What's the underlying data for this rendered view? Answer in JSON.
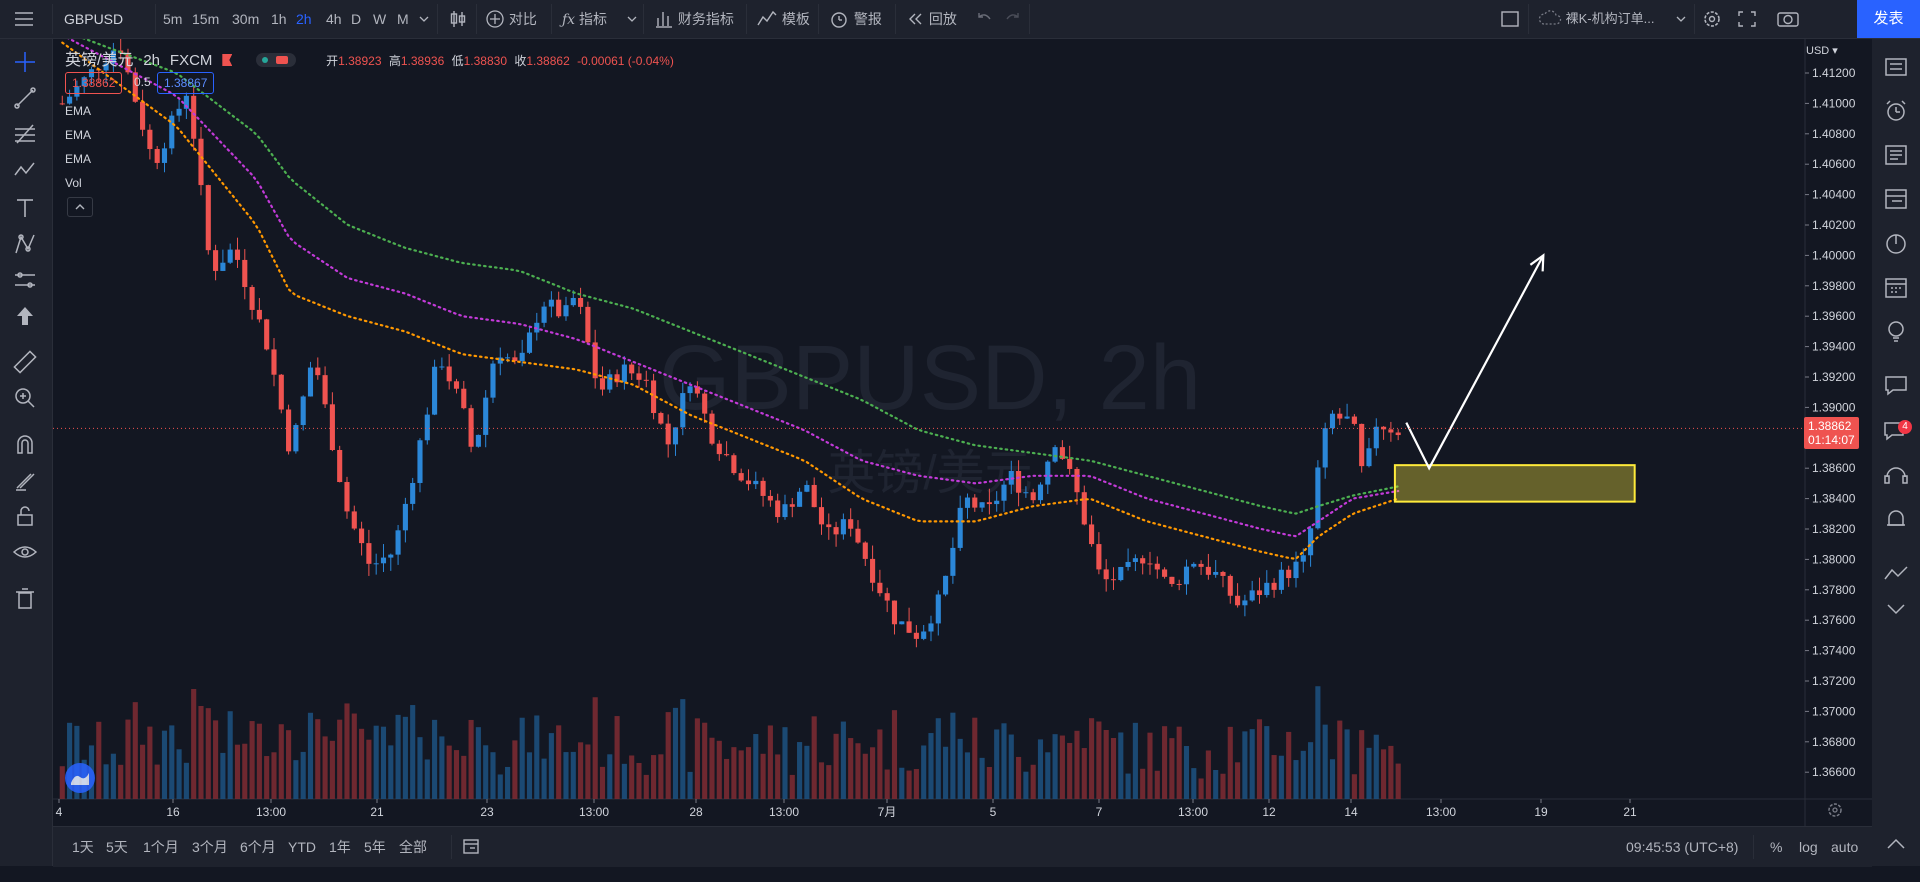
{
  "toolbar": {
    "symbol": "GBPUSD",
    "intervals": [
      "5m",
      "15m",
      "30m",
      "1h",
      "2h",
      "4h",
      "D",
      "W",
      "M"
    ],
    "active_interval": "2h",
    "compare": "对比",
    "indicators": "指标",
    "financials": "财务指标",
    "templates": "模板",
    "alert": "警报",
    "replay": "回放",
    "layout_name": "裸K-机构订单...",
    "publish": "发表"
  },
  "legend": {
    "title": "英镑/美元",
    "interval": "2h",
    "source": "FXCM",
    "open_label": "开",
    "open": "1.38923",
    "high_label": "高",
    "high": "1.38936",
    "low_label": "低",
    "low": "1.38830",
    "close_label": "收",
    "close": "1.38862",
    "change": "-0.00061 (-0.04%)",
    "bid": "1.38862",
    "spread": "0.5",
    "ask": "1.38867",
    "indicators": [
      "EMA",
      "EMA",
      "EMA",
      "Vol"
    ]
  },
  "price_axis": {
    "currency": "USD",
    "last_price": "1.38862",
    "countdown": "01:14:07"
  },
  "bottom": {
    "ranges": [
      "1天",
      "5天",
      "1个月",
      "3个月",
      "6个月",
      "YTD",
      "1年",
      "5年",
      "全部"
    ],
    "clock": "09:45:53 (UTC+8)",
    "percent": "%",
    "log": "log",
    "auto": "auto"
  },
  "watermark": {
    "line1": "GBPUSD, 2h",
    "line2": "英镑/美元"
  },
  "notification_count": "4",
  "colors": {
    "up": "#2b87d8",
    "down": "#ef5350",
    "ema_fast": "#ff9800",
    "ema_mid": "#c23ad8",
    "ema_slow": "#4caf50",
    "zone": "#ffeb3b",
    "arrow": "#ffffff"
  },
  "chart_data": {
    "type": "candlestick",
    "title": "",
    "ylim": [
      1.3645,
      1.4145
    ],
    "y_ticks": [
      "1.41200",
      "1.41000",
      "1.40800",
      "1.40600",
      "1.40400",
      "1.40200",
      "1.40000",
      "1.39800",
      "1.39600",
      "1.39400",
      "1.39200",
      "1.39000",
      "1.38800",
      "1.38600",
      "1.38400",
      "1.38200",
      "1.38000",
      "1.37800",
      "1.37600",
      "1.37400",
      "1.37200",
      "1.37000",
      "1.36800",
      "1.36600"
    ],
    "x_ticks": [
      "4",
      "16",
      "13:00",
      "21",
      "23",
      "13:00",
      "28",
      "13:00",
      "7月",
      "5",
      "7",
      "13:00",
      "12",
      "14",
      "13:00",
      "19",
      "21"
    ],
    "price_path": [
      [
        0,
        1.41
      ],
      [
        5,
        1.414
      ],
      [
        8,
        1.406
      ],
      [
        11,
        1.411
      ],
      [
        13,
        1.399
      ],
      [
        15,
        1.4005
      ],
      [
        18,
        1.394
      ],
      [
        20,
        1.387
      ],
      [
        22,
        1.3935
      ],
      [
        25,
        1.383
      ],
      [
        27,
        1.3795
      ],
      [
        29,
        1.3805
      ],
      [
        31,
        1.3865
      ],
      [
        33,
        1.3935
      ],
      [
        35,
        1.39
      ],
      [
        36,
        1.3868
      ],
      [
        38,
        1.394
      ],
      [
        40,
        1.3925
      ],
      [
        42,
        1.397
      ],
      [
        44,
        1.396
      ],
      [
        45,
        1.3975
      ],
      [
        47,
        1.391
      ],
      [
        49,
        1.3925
      ],
      [
        51,
        1.392
      ],
      [
        53,
        1.3875
      ],
      [
        55,
        1.392
      ],
      [
        57,
        1.388
      ],
      [
        59,
        1.386
      ],
      [
        61,
        1.3845
      ],
      [
        63,
        1.383
      ],
      [
        65,
        1.385
      ],
      [
        67,
        1.3815
      ],
      [
        69,
        1.3825
      ],
      [
        71,
        1.379
      ],
      [
        73,
        1.376
      ],
      [
        75,
        1.375
      ],
      [
        77,
        1.3775
      ],
      [
        79,
        1.384
      ],
      [
        81,
        1.383
      ],
      [
        83,
        1.3855
      ],
      [
        85,
        1.384
      ],
      [
        87,
        1.388
      ],
      [
        89,
        1.384
      ],
      [
        91,
        1.3785
      ],
      [
        93,
        1.379
      ],
      [
        95,
        1.3805
      ],
      [
        97,
        1.378
      ],
      [
        99,
        1.38
      ],
      [
        101,
        1.379
      ],
      [
        103,
        1.377
      ],
      [
        105,
        1.378
      ],
      [
        107,
        1.379
      ],
      [
        109,
        1.38
      ],
      [
        110,
        1.386
      ],
      [
        111,
        1.3895
      ],
      [
        113,
        1.389
      ],
      [
        114,
        1.385
      ],
      [
        115,
        1.389
      ],
      [
        117,
        1.3885
      ]
    ],
    "ema_fast_path": [
      [
        0,
        1.414
      ],
      [
        10,
        1.4085
      ],
      [
        17,
        1.402
      ],
      [
        20,
        1.3975
      ],
      [
        25,
        1.396
      ],
      [
        30,
        1.395
      ],
      [
        35,
        1.3935
      ],
      [
        40,
        1.393
      ],
      [
        45,
        1.3925
      ],
      [
        50,
        1.3915
      ],
      [
        55,
        1.3895
      ],
      [
        60,
        1.388
      ],
      [
        65,
        1.3865
      ],
      [
        70,
        1.384
      ],
      [
        75,
        1.3825
      ],
      [
        80,
        1.3825
      ],
      [
        85,
        1.3835
      ],
      [
        90,
        1.384
      ],
      [
        95,
        1.3825
      ],
      [
        100,
        1.3815
      ],
      [
        105,
        1.3805
      ],
      [
        108,
        1.38
      ],
      [
        110,
        1.3815
      ],
      [
        113,
        1.383
      ],
      [
        117,
        1.384
      ]
    ],
    "ema_mid_path": [
      [
        0,
        1.4145
      ],
      [
        10,
        1.4105
      ],
      [
        17,
        1.405
      ],
      [
        20,
        1.401
      ],
      [
        25,
        1.3985
      ],
      [
        30,
        1.3975
      ],
      [
        35,
        1.396
      ],
      [
        40,
        1.3955
      ],
      [
        45,
        1.3945
      ],
      [
        50,
        1.393
      ],
      [
        55,
        1.3915
      ],
      [
        60,
        1.39
      ],
      [
        65,
        1.3885
      ],
      [
        70,
        1.3865
      ],
      [
        75,
        1.3855
      ],
      [
        80,
        1.385
      ],
      [
        85,
        1.3855
      ],
      [
        90,
        1.3855
      ],
      [
        95,
        1.384
      ],
      [
        100,
        1.383
      ],
      [
        105,
        1.382
      ],
      [
        108,
        1.3815
      ],
      [
        110,
        1.3825
      ],
      [
        113,
        1.384
      ],
      [
        117,
        1.3845
      ]
    ],
    "ema_slow_path": [
      [
        0,
        1.4148
      ],
      [
        10,
        1.412
      ],
      [
        17,
        1.408
      ],
      [
        20,
        1.405
      ],
      [
        25,
        1.402
      ],
      [
        30,
        1.4005
      ],
      [
        35,
        1.3995
      ],
      [
        40,
        1.399
      ],
      [
        45,
        1.3975
      ],
      [
        50,
        1.3965
      ],
      [
        55,
        1.395
      ],
      [
        60,
        1.3935
      ],
      [
        65,
        1.392
      ],
      [
        70,
        1.3905
      ],
      [
        75,
        1.3885
      ],
      [
        80,
        1.3875
      ],
      [
        85,
        1.387
      ],
      [
        90,
        1.3865
      ],
      [
        95,
        1.3855
      ],
      [
        100,
        1.3845
      ],
      [
        105,
        1.3835
      ],
      [
        108,
        1.383
      ],
      [
        110,
        1.3835
      ],
      [
        113,
        1.3842
      ],
      [
        117,
        1.3848
      ]
    ],
    "demand_zone": {
      "bar_from": 117,
      "bar_to": 138,
      "price_top": 1.3862,
      "price_bottom": 1.3838
    },
    "projection_arrow": [
      [
        118,
        1.389
      ],
      [
        120,
        1.386
      ],
      [
        130,
        1.4
      ]
    ],
    "num_bars": 240,
    "visible_bars": 240
  }
}
